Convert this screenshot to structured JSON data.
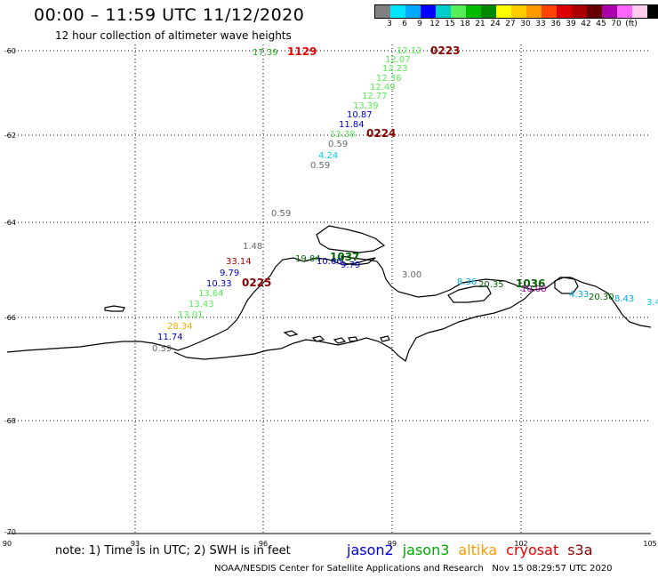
{
  "header": {
    "title": "00:00 – 11:59 UTC 11/12/2020",
    "subtitle": "12 hour collection of altimeter wave heights"
  },
  "colorbar": {
    "unit": "(ft)",
    "colors": [
      "#808080",
      "#00e5ff",
      "#00aaff",
      "#0000ff",
      "#00cccc",
      "#55ee55",
      "#00bb00",
      "#008800",
      "#ffff00",
      "#ffcc00",
      "#ff9900",
      "#ff4400",
      "#dd0000",
      "#aa0000",
      "#660000",
      "#aa00aa",
      "#ff66ff",
      "#ffccee",
      "#000000"
    ],
    "labels": [
      "3",
      "6",
      "9",
      "12",
      "15",
      "18",
      "21",
      "24",
      "27",
      "30",
      "33",
      "36",
      "39",
      "42",
      "45",
      "70"
    ]
  },
  "axes": {
    "lat_labels": [
      "-60",
      "-62",
      "-64",
      "-66",
      "-68",
      "-70"
    ],
    "lon_labels": [
      "90",
      "93",
      "96",
      "99",
      "102",
      "105"
    ]
  },
  "map_labels": [
    {
      "text": "17.39",
      "color": "#22aa22"
    },
    {
      "text": "1129",
      "color": "#ee0000"
    },
    {
      "text": "12.12",
      "color": "#55ee55"
    },
    {
      "text": "0223",
      "color": "#880000"
    },
    {
      "text": "12.07",
      "color": "#55ee55"
    },
    {
      "text": "12.23",
      "color": "#55ee55"
    },
    {
      "text": "12.36",
      "color": "#55ee55"
    },
    {
      "text": "12.49",
      "color": "#55ee55"
    },
    {
      "text": "12.77",
      "color": "#55ee55"
    },
    {
      "text": "13.39",
      "color": "#55ee55"
    },
    {
      "text": "10.87",
      "color": "#0000cc"
    },
    {
      "text": "11.84",
      "color": "#0000cc"
    },
    {
      "text": "13.38",
      "color": "#55ee55"
    },
    {
      "text": "0224",
      "color": "#880000"
    },
    {
      "text": "0.59",
      "color": "#666666"
    },
    {
      "text": "4.24",
      "color": "#00ccee"
    },
    {
      "text": "0.59",
      "color": "#666666"
    },
    {
      "text": "0.59",
      "color": "#666666"
    },
    {
      "text": "1.48",
      "color": "#666666"
    },
    {
      "text": "33.14",
      "color": "#aa0000"
    },
    {
      "text": "9.79",
      "color": "#0000cc"
    },
    {
      "text": "10.33",
      "color": "#0000cc"
    },
    {
      "text": "0225",
      "color": "#880000"
    },
    {
      "text": "13.64",
      "color": "#55ee55"
    },
    {
      "text": "13.43",
      "color": "#55ee55"
    },
    {
      "text": "13.01",
      "color": "#55ee55"
    },
    {
      "text": "28.34",
      "color": "#ffaa00"
    },
    {
      "text": "11.74",
      "color": "#0000cc"
    },
    {
      "text": "0.59",
      "color": "#666666"
    },
    {
      "text": "19.84",
      "color": "#006600"
    },
    {
      "text": "1037",
      "color": "#006600"
    },
    {
      "text": "10.66",
      "color": "#0000cc"
    },
    {
      "text": "9.79",
      "color": "#0000cc"
    },
    {
      "text": "3.00",
      "color": "#666666"
    },
    {
      "text": "8.36",
      "color": "#00aadd"
    },
    {
      "text": "20.35",
      "color": "#006600"
    },
    {
      "text": "1036",
      "color": "#006600"
    },
    {
      "text": "10.08",
      "color": "#990099"
    },
    {
      "text": "4.33",
      "color": "#00aadd"
    },
    {
      "text": "20.30",
      "color": "#006600"
    },
    {
      "text": "8.43",
      "color": "#00aadd"
    },
    {
      "text": "3.4",
      "color": "#00ccee"
    }
  ],
  "footer": {
    "note": "note: 1) Time is in UTC; 2) SWH is in feet",
    "legend": [
      {
        "name": "jason2",
        "color": "#0000dd"
      },
      {
        "name": "jason3",
        "color": "#00aa00"
      },
      {
        "name": "altika",
        "color": "#ff9900"
      },
      {
        "name": "cryosat",
        "color": "#ee0000"
      },
      {
        "name": "s3a",
        "color": "#880000"
      }
    ],
    "credit": "NOAA/NESDIS Center for Satellite Applications and Research   Nov 15 08:29:57 UTC 2020"
  }
}
